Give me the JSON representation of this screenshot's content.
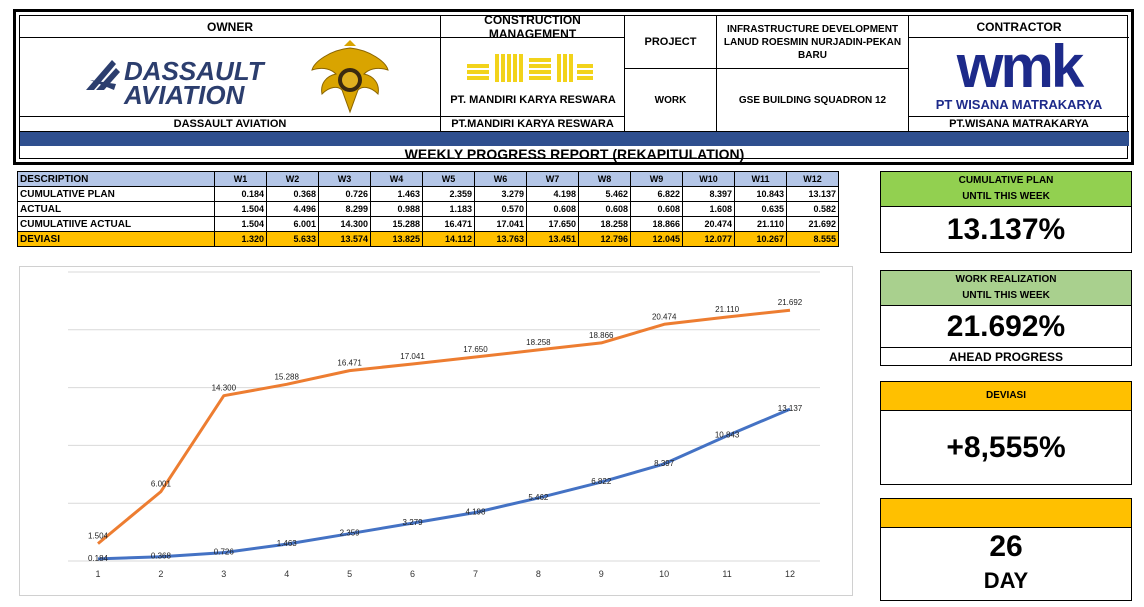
{
  "header": {
    "owner_title": "OWNER",
    "owner_logo_text_1": "DASSAULT",
    "owner_logo_text_2": "AVIATION",
    "owner_name": "DASSAULT AVIATION",
    "cm_title": "CONSTRUCTION MANAGEMENT",
    "cm_logo_text": "PT. MANDIRI KARYA RESWARA",
    "cm_name": "PT.MANDIRI KARYA RESWARA",
    "project_label": "PROJECT",
    "project_value": "INFRASTRUCTURE DEVELOPMENT LANUD ROESMIN NURJADIN-PEKAN BARU",
    "work_label": "WORK",
    "work_value": "GSE BUILDING SQUADRON 12",
    "contractor_title": "CONTRACTOR",
    "contractor_logo_text": "wmk",
    "contractor_logo_caption": "PT WISANA MATRAKARYA",
    "contractor_name": "PT.WISANA MATRAKARYA",
    "report_title": "WEEKLY PROGRESS REPORT (REKAPITULATION)"
  },
  "table": {
    "header": [
      "DESCRIPTION",
      "W1",
      "W2",
      "W3",
      "W4",
      "W5",
      "W6",
      "W7",
      "W8",
      "W9",
      "W10",
      "W11",
      "W12"
    ],
    "rows": [
      {
        "label": "CUMULATIVE PLAN",
        "values": [
          "0.184",
          "0.368",
          "0.726",
          "1.463",
          "2.359",
          "3.279",
          "4.198",
          "5.462",
          "6.822",
          "8.397",
          "10.843",
          "13.137"
        ]
      },
      {
        "label": "ACTUAL",
        "values": [
          "1.504",
          "4.496",
          "8.299",
          "0.988",
          "1.183",
          "0.570",
          "0.608",
          "0.608",
          "0.608",
          "1.608",
          "0.635",
          "0.582"
        ]
      },
      {
        "label": "CUMULATIIVE ACTUAL",
        "values": [
          "1.504",
          "6.001",
          "14.300",
          "15.288",
          "16.471",
          "17.041",
          "17.650",
          "18.258",
          "18.866",
          "20.474",
          "21.110",
          "21.692"
        ]
      },
      {
        "label": "DEVIASI",
        "values": [
          "1.320",
          "5.633",
          "13.574",
          "13.825",
          "14.112",
          "13.763",
          "13.451",
          "12.796",
          "12.045",
          "12.077",
          "10.267",
          "8.555"
        ]
      }
    ]
  },
  "chart_data": {
    "type": "line",
    "x": [
      1,
      2,
      3,
      4,
      5,
      6,
      7,
      8,
      9,
      10,
      11,
      12
    ],
    "series": [
      {
        "color": "#ed7d31",
        "values": [
          1.504,
          6.001,
          14.3,
          15.288,
          16.471,
          17.041,
          17.65,
          18.258,
          18.866,
          20.474,
          21.11,
          21.692
        ],
        "labels": [
          "1.504",
          "6.001",
          "14.300",
          "15.288",
          "16.471",
          "17.041",
          "17.650",
          "18.258",
          "18.866",
          "20.474",
          "21.110",
          "21.692"
        ]
      },
      {
        "color": "#4472c4",
        "values": [
          0.184,
          0.368,
          0.726,
          1.463,
          2.359,
          3.279,
          4.198,
          5.462,
          6.822,
          8.397,
          10.843,
          13.137
        ],
        "labels": [
          "0.184",
          "0.368",
          "0.726",
          "1.463",
          "2.359",
          "3.279",
          "4.198",
          "5.462",
          "6.822",
          "8.397",
          "10.843",
          "13.137"
        ]
      }
    ],
    "ylim": [
      0,
      25
    ],
    "grid": true,
    "title": "",
    "xlabel": "",
    "ylabel": ""
  },
  "panels": {
    "plan": {
      "title_1": "CUMULATIVE PLAN",
      "title_2": "UNTIL THIS WEEK",
      "value": "13.137%",
      "color": "#92d050"
    },
    "realization": {
      "title_1": "WORK REALIZATION",
      "title_2": "UNTIL THIS WEEK",
      "value": "21.692%",
      "footer": "AHEAD PROGRESS",
      "color": "#a9d08e"
    },
    "deviasi": {
      "title": "DEVIASI",
      "value": "+8,555%",
      "color": "#ffc000"
    },
    "day": {
      "value": "26",
      "unit": "DAY",
      "color": "#ffc000"
    }
  },
  "colors": {
    "header_band": "#2f4f8f",
    "table_header": "#b4c6e7",
    "deviation_row": "#ffc000"
  }
}
